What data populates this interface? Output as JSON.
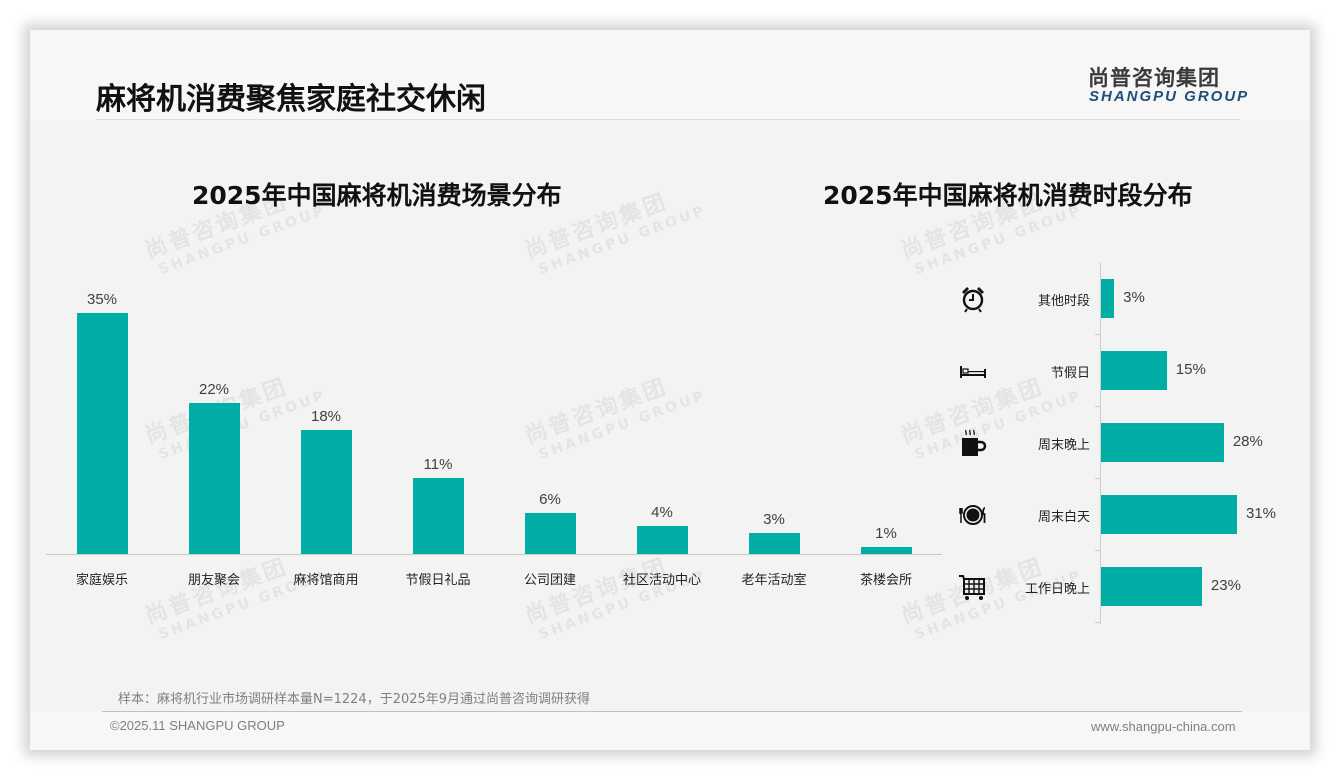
{
  "page": {
    "title": "麻将机消费聚焦家庭社交休闲",
    "logo_cn": "尚普咨询集团",
    "logo_en": "SHANGPU GROUP",
    "watermark_cn": "尚普咨询集团",
    "watermark_en": "SHANGPU GROUP",
    "note": "样本：麻将机行业市场调研样本量N=1224，于2025年9月通过尚普咨询调研获得",
    "copyright": "©2025.11 SHANGPU GROUP",
    "website": "www.shangpu-china.com",
    "accent_color": "#00aea6",
    "brand_color": "#1f4e79"
  },
  "chart_data": [
    {
      "type": "bar",
      "title": "2025年中国麻将机消费场景分布",
      "categories": [
        "家庭娱乐",
        "朋友聚会",
        "麻将馆商用",
        "节假日礼品",
        "公司团建",
        "社区活动中心",
        "老年活动室",
        "茶楼会所"
      ],
      "values": [
        35,
        22,
        18,
        11,
        6,
        4,
        3,
        1
      ],
      "value_labels": [
        "35%",
        "22%",
        "18%",
        "11%",
        "6%",
        "4%",
        "3%",
        "1%"
      ],
      "xlabel": "",
      "ylabel": "",
      "unit": "%",
      "ylim": [
        0,
        35
      ],
      "grid": false,
      "legend": "none",
      "color": "#00aea6"
    },
    {
      "type": "bar",
      "orientation": "horizontal",
      "title": "2025年中国麻将机消费时段分布",
      "categories": [
        "其他时段",
        "节假日",
        "周末晚上",
        "周末白天",
        "工作日晚上"
      ],
      "values": [
        3,
        15,
        28,
        31,
        23
      ],
      "value_labels": [
        "3%",
        "15%",
        "28%",
        "31%",
        "23%"
      ],
      "icons": [
        "alarm-clock-icon",
        "bed-icon",
        "hot-coffee-icon",
        "plate-cutlery-icon",
        "shopping-cart-icon"
      ],
      "xlabel": "",
      "ylabel": "",
      "unit": "%",
      "xlim": [
        0,
        31
      ],
      "grid": false,
      "legend": "none",
      "color": "#00aea6"
    }
  ]
}
